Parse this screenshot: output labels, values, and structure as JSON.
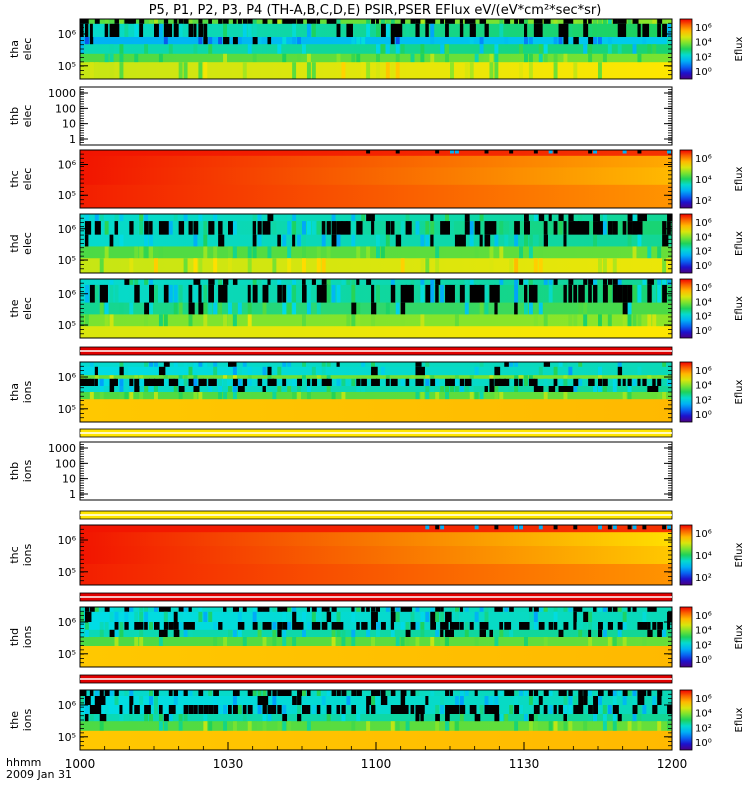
{
  "title": "P5, P1, P2, P3, P4 (TH-A,B,C,D,E) PSIR,PSER EFlux eV/(eV*cm²*sec*sr)",
  "footer": {
    "time_label": "hhmm",
    "date_label": "2009 Jan 31"
  },
  "x_axis": {
    "ticks": [
      "1000",
      "1030",
      "1100",
      "1130",
      "1200"
    ],
    "range_min": [
      600,
      720
    ]
  },
  "colorbar": {
    "label": "Eflux"
  },
  "chart_data": [
    {
      "type": "heatmap",
      "ylabel": [
        "tha",
        "elec"
      ],
      "ytick_labels": [
        "10⁵",
        "10⁶"
      ],
      "colorbar_ticks": [
        "10⁶",
        "10⁴",
        "10²",
        "10⁰"
      ],
      "bands": [
        {
          "f0": 0.0,
          "f1": 0.08,
          "dark": 1.0,
          "pre": [
            0.55,
            0.62
          ],
          "post": [
            0.4,
            0.45
          ]
        },
        {
          "f0": 0.08,
          "f1": 0.3,
          "dark": 0.6,
          "pre": [
            0.4,
            0.5
          ],
          "post": [
            0.35,
            0.4
          ]
        },
        {
          "f0": 0.3,
          "f1": 0.42,
          "dark": 0.2,
          "pre": [
            0.3,
            0.35
          ],
          "post": [
            0.28,
            0.32
          ]
        },
        {
          "f0": 0.42,
          "f1": 0.58,
          "dark": 0.0,
          "pre": [
            0.42,
            0.48
          ],
          "post": [
            0.35,
            0.4
          ]
        },
        {
          "f0": 0.58,
          "f1": 0.72,
          "dark": 0.0,
          "pre": [
            0.55,
            0.6
          ],
          "post": [
            0.5,
            0.55
          ]
        },
        {
          "f0": 0.72,
          "f1": 1.0,
          "dark": 0.0,
          "pre": [
            0.68,
            0.74
          ],
          "post": [
            0.5,
            0.6
          ]
        }
      ],
      "transition_minute": 1133,
      "post_dark_top": 0.3
    },
    {
      "type": "empty",
      "ylabel": [
        "thb",
        "elec"
      ],
      "ytick_labels": [
        "1",
        "10",
        "100",
        "1000"
      ]
    },
    {
      "type": "heatmap",
      "ylabel": [
        "thc",
        "elec"
      ],
      "ytick_labels": [
        "10⁵",
        "10⁶"
      ],
      "colorbar_ticks": [
        "10⁶",
        "10⁴",
        "10²"
      ],
      "bands": [
        {
          "f0": 0.0,
          "f1": 0.1,
          "dark": 0.0,
          "pre": [
            0.98,
            0.95
          ],
          "post": [
            0.45,
            0.4
          ],
          "dark_from": 0.4
        },
        {
          "f0": 0.1,
          "f1": 0.3,
          "dark": 0.0,
          "pre": [
            0.98,
            0.82
          ],
          "post": [
            0.55,
            0.5
          ]
        },
        {
          "f0": 0.3,
          "f1": 0.6,
          "dark": 0.0,
          "pre": [
            0.98,
            0.8
          ],
          "post": [
            0.7,
            0.68
          ]
        },
        {
          "f0": 0.6,
          "f1": 1.0,
          "dark": 0.0,
          "pre": [
            0.97,
            0.85
          ],
          "post": [
            0.8,
            0.75
          ]
        }
      ],
      "transition_minute": 1200,
      "post_dark_top": 0.0
    },
    {
      "type": "heatmap",
      "ylabel": [
        "thd",
        "elec"
      ],
      "ytick_labels": [
        "10⁵",
        "10⁶"
      ],
      "colorbar_ticks": [
        "10⁶",
        "10⁴",
        "10²",
        "10⁰"
      ],
      "bands": [
        {
          "f0": 0.0,
          "f1": 0.12,
          "dark": 0.3,
          "pre": [
            0.4,
            0.45
          ],
          "post": [
            0.38,
            0.4
          ]
        },
        {
          "f0": 0.12,
          "f1": 0.35,
          "dark": 0.8,
          "pre": [
            0.4,
            0.48
          ],
          "post": [
            0.35,
            0.4
          ]
        },
        {
          "f0": 0.35,
          "f1": 0.55,
          "dark": 0.2,
          "pre": [
            0.4,
            0.45
          ],
          "post": [
            0.4,
            0.42
          ]
        },
        {
          "f0": 0.55,
          "f1": 0.75,
          "dark": 0.0,
          "pre": [
            0.55,
            0.58
          ],
          "post": [
            0.5,
            0.55
          ]
        },
        {
          "f0": 0.75,
          "f1": 1.0,
          "dark": 0.0,
          "pre": [
            0.68,
            0.72
          ],
          "post": [
            0.55,
            0.6
          ]
        }
      ],
      "transition_minute": 1145,
      "post_dark_top": 0.22
    },
    {
      "type": "heatmap",
      "ylabel": [
        "the",
        "elec"
      ],
      "ytick_labels": [
        "10⁵",
        "10⁶"
      ],
      "colorbar_ticks": [
        "10⁶",
        "10⁴",
        "10²",
        "10⁰"
      ],
      "bands": [
        {
          "f0": 0.0,
          "f1": 0.1,
          "dark": 0.3,
          "pre": [
            0.4,
            0.45
          ],
          "post": [
            0.38,
            0.4
          ]
        },
        {
          "f0": 0.1,
          "f1": 0.4,
          "dark": 0.8,
          "pre": [
            0.4,
            0.48
          ],
          "post": [
            0.38,
            0.4
          ]
        },
        {
          "f0": 0.4,
          "f1": 0.6,
          "dark": 0.1,
          "pre": [
            0.45,
            0.55
          ],
          "post": [
            0.45,
            0.5
          ]
        },
        {
          "f0": 0.6,
          "f1": 0.8,
          "dark": 0.0,
          "pre": [
            0.6,
            0.62
          ],
          "post": [
            0.55,
            0.58
          ]
        },
        {
          "f0": 0.8,
          "f1": 1.0,
          "dark": 0.0,
          "pre": [
            0.7,
            0.74
          ],
          "post": [
            0.58,
            0.62
          ]
        }
      ],
      "transition_minute": 1148,
      "post_dark_top": 0.22
    },
    {
      "type": "strip",
      "style": "red"
    },
    {
      "type": "heatmap",
      "ylabel": [
        "tha",
        "ions"
      ],
      "ytick_labels": [
        "10⁵",
        "10⁶"
      ],
      "colorbar_ticks": [
        "10⁶",
        "10⁴",
        "10²",
        "10⁰"
      ],
      "bands": [
        {
          "f0": 0.0,
          "f1": 0.08,
          "dark": 0.1,
          "pre": [
            0.4,
            0.42
          ],
          "post": [
            0.15,
            0.2
          ]
        },
        {
          "f0": 0.08,
          "f1": 0.22,
          "dark": 0.1,
          "pre": [
            0.38,
            0.42
          ],
          "post": [
            0.12,
            0.18
          ]
        },
        {
          "f0": 0.22,
          "f1": 0.28,
          "dark": 0.0,
          "pre": [
            0.58,
            0.6
          ],
          "post": [
            0.3,
            0.35
          ]
        },
        {
          "f0": 0.28,
          "f1": 0.4,
          "dark": 0.9,
          "pre": [
            0.38,
            0.42
          ],
          "post": [
            0.35,
            0.4
          ]
        },
        {
          "f0": 0.4,
          "f1": 0.5,
          "dark": 0.2,
          "pre": [
            0.4,
            0.45
          ],
          "post": [
            0.4,
            0.45
          ]
        },
        {
          "f0": 0.5,
          "f1": 0.62,
          "dark": 0.0,
          "pre": [
            0.55,
            0.58
          ],
          "post": [
            0.48,
            0.52
          ]
        },
        {
          "f0": 0.62,
          "f1": 1.0,
          "dark": 0.0,
          "pre": [
            0.78,
            0.8
          ],
          "post": [
            0.55,
            0.58
          ]
        }
      ],
      "transition_minute": 1133,
      "post_dark_top": 0.0
    },
    {
      "type": "strip",
      "style": "yellow"
    },
    {
      "type": "empty",
      "ylabel": [
        "thb",
        "ions"
      ],
      "ytick_labels": [
        "1",
        "10",
        "100",
        "1000"
      ]
    },
    {
      "type": "strip",
      "style": "yellow"
    },
    {
      "type": "heatmap",
      "ylabel": [
        "thc",
        "ions"
      ],
      "ytick_labels": [
        "10⁵",
        "10⁶"
      ],
      "colorbar_ticks": [
        "10⁶",
        "10⁴",
        "10²"
      ],
      "bands": [
        {
          "f0": 0.0,
          "f1": 0.12,
          "dark": 0.0,
          "pre": [
            0.98,
            0.95
          ],
          "post": [
            0.4,
            0.38
          ],
          "dark_from": 0.5
        },
        {
          "f0": 0.12,
          "f1": 0.35,
          "dark": 0.0,
          "pre": [
            0.98,
            0.75
          ],
          "post": [
            0.5,
            0.45
          ]
        },
        {
          "f0": 0.35,
          "f1": 0.65,
          "dark": 0.0,
          "pre": [
            0.98,
            0.78
          ],
          "post": [
            0.72,
            0.68
          ]
        },
        {
          "f0": 0.65,
          "f1": 1.0,
          "dark": 0.0,
          "pre": [
            0.97,
            0.85
          ],
          "post": [
            0.85,
            0.82
          ]
        }
      ],
      "transition_minute": 1200,
      "post_dark_top": 0.0
    },
    {
      "type": "strip",
      "style": "red"
    },
    {
      "type": "heatmap",
      "ylabel": [
        "thd",
        "ions"
      ],
      "ytick_labels": [
        "10⁵",
        "10⁶"
      ],
      "colorbar_ticks": [
        "10⁶",
        "10⁴",
        "10²",
        "10⁰"
      ],
      "bands": [
        {
          "f0": 0.0,
          "f1": 0.08,
          "dark": 0.8,
          "pre": [
            0.4,
            0.42
          ],
          "post": [
            0.12,
            0.15
          ]
        },
        {
          "f0": 0.08,
          "f1": 0.25,
          "dark": 0.2,
          "pre": [
            0.38,
            0.42
          ],
          "post": [
            0.12,
            0.15
          ]
        },
        {
          "f0": 0.25,
          "f1": 0.38,
          "dark": 0.9,
          "pre": [
            0.38,
            0.42
          ],
          "post": [
            0.3,
            0.35
          ]
        },
        {
          "f0": 0.38,
          "f1": 0.5,
          "dark": 0.2,
          "pre": [
            0.42,
            0.45
          ],
          "post": [
            0.4,
            0.45
          ]
        },
        {
          "f0": 0.5,
          "f1": 0.65,
          "dark": 0.0,
          "pre": [
            0.55,
            0.58
          ],
          "post": [
            0.5,
            0.55
          ]
        },
        {
          "f0": 0.65,
          "f1": 1.0,
          "dark": 0.0,
          "pre": [
            0.78,
            0.8
          ],
          "post": [
            0.6,
            0.62
          ]
        }
      ],
      "transition_minute": 1145,
      "post_dark_top": 0.0
    },
    {
      "type": "strip",
      "style": "red"
    },
    {
      "type": "heatmap",
      "ylabel": [
        "the",
        "ions"
      ],
      "ytick_labels": [
        "10⁵",
        "10⁶"
      ],
      "colorbar_ticks": [
        "10⁶",
        "10⁴",
        "10²",
        "10⁰"
      ],
      "bands": [
        {
          "f0": 0.0,
          "f1": 0.1,
          "dark": 0.8,
          "pre": [
            0.4,
            0.42
          ],
          "post": [
            0.12,
            0.15
          ]
        },
        {
          "f0": 0.1,
          "f1": 0.25,
          "dark": 0.2,
          "pre": [
            0.38,
            0.42
          ],
          "post": [
            0.12,
            0.15
          ]
        },
        {
          "f0": 0.25,
          "f1": 0.4,
          "dark": 0.9,
          "pre": [
            0.38,
            0.42
          ],
          "post": [
            0.3,
            0.35
          ]
        },
        {
          "f0": 0.4,
          "f1": 0.52,
          "dark": 0.2,
          "pre": [
            0.42,
            0.45
          ],
          "post": [
            0.4,
            0.45
          ]
        },
        {
          "f0": 0.52,
          "f1": 0.68,
          "dark": 0.0,
          "pre": [
            0.55,
            0.58
          ],
          "post": [
            0.5,
            0.55
          ]
        },
        {
          "f0": 0.68,
          "f1": 1.0,
          "dark": 0.0,
          "pre": [
            0.78,
            0.8
          ],
          "post": [
            0.62,
            0.65
          ]
        }
      ],
      "transition_minute": 1150,
      "post_dark_top": 0.0
    }
  ]
}
